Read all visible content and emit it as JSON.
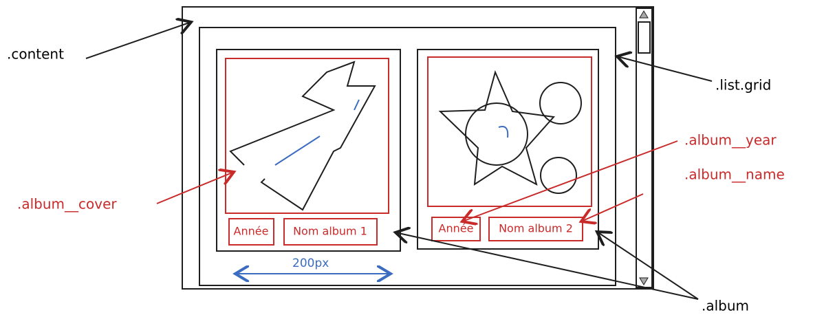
{
  "labels": {
    "content": ".content",
    "list_grid": ".list.grid",
    "album_cover": ".album__cover",
    "album_year": ".album__year",
    "album_name": ".album__name",
    "album": ".album"
  },
  "dimension": "200px",
  "albums": [
    {
      "year": "Année",
      "name": "Nom album 1"
    },
    {
      "year": "Année",
      "name": "Nom album 2"
    }
  ]
}
